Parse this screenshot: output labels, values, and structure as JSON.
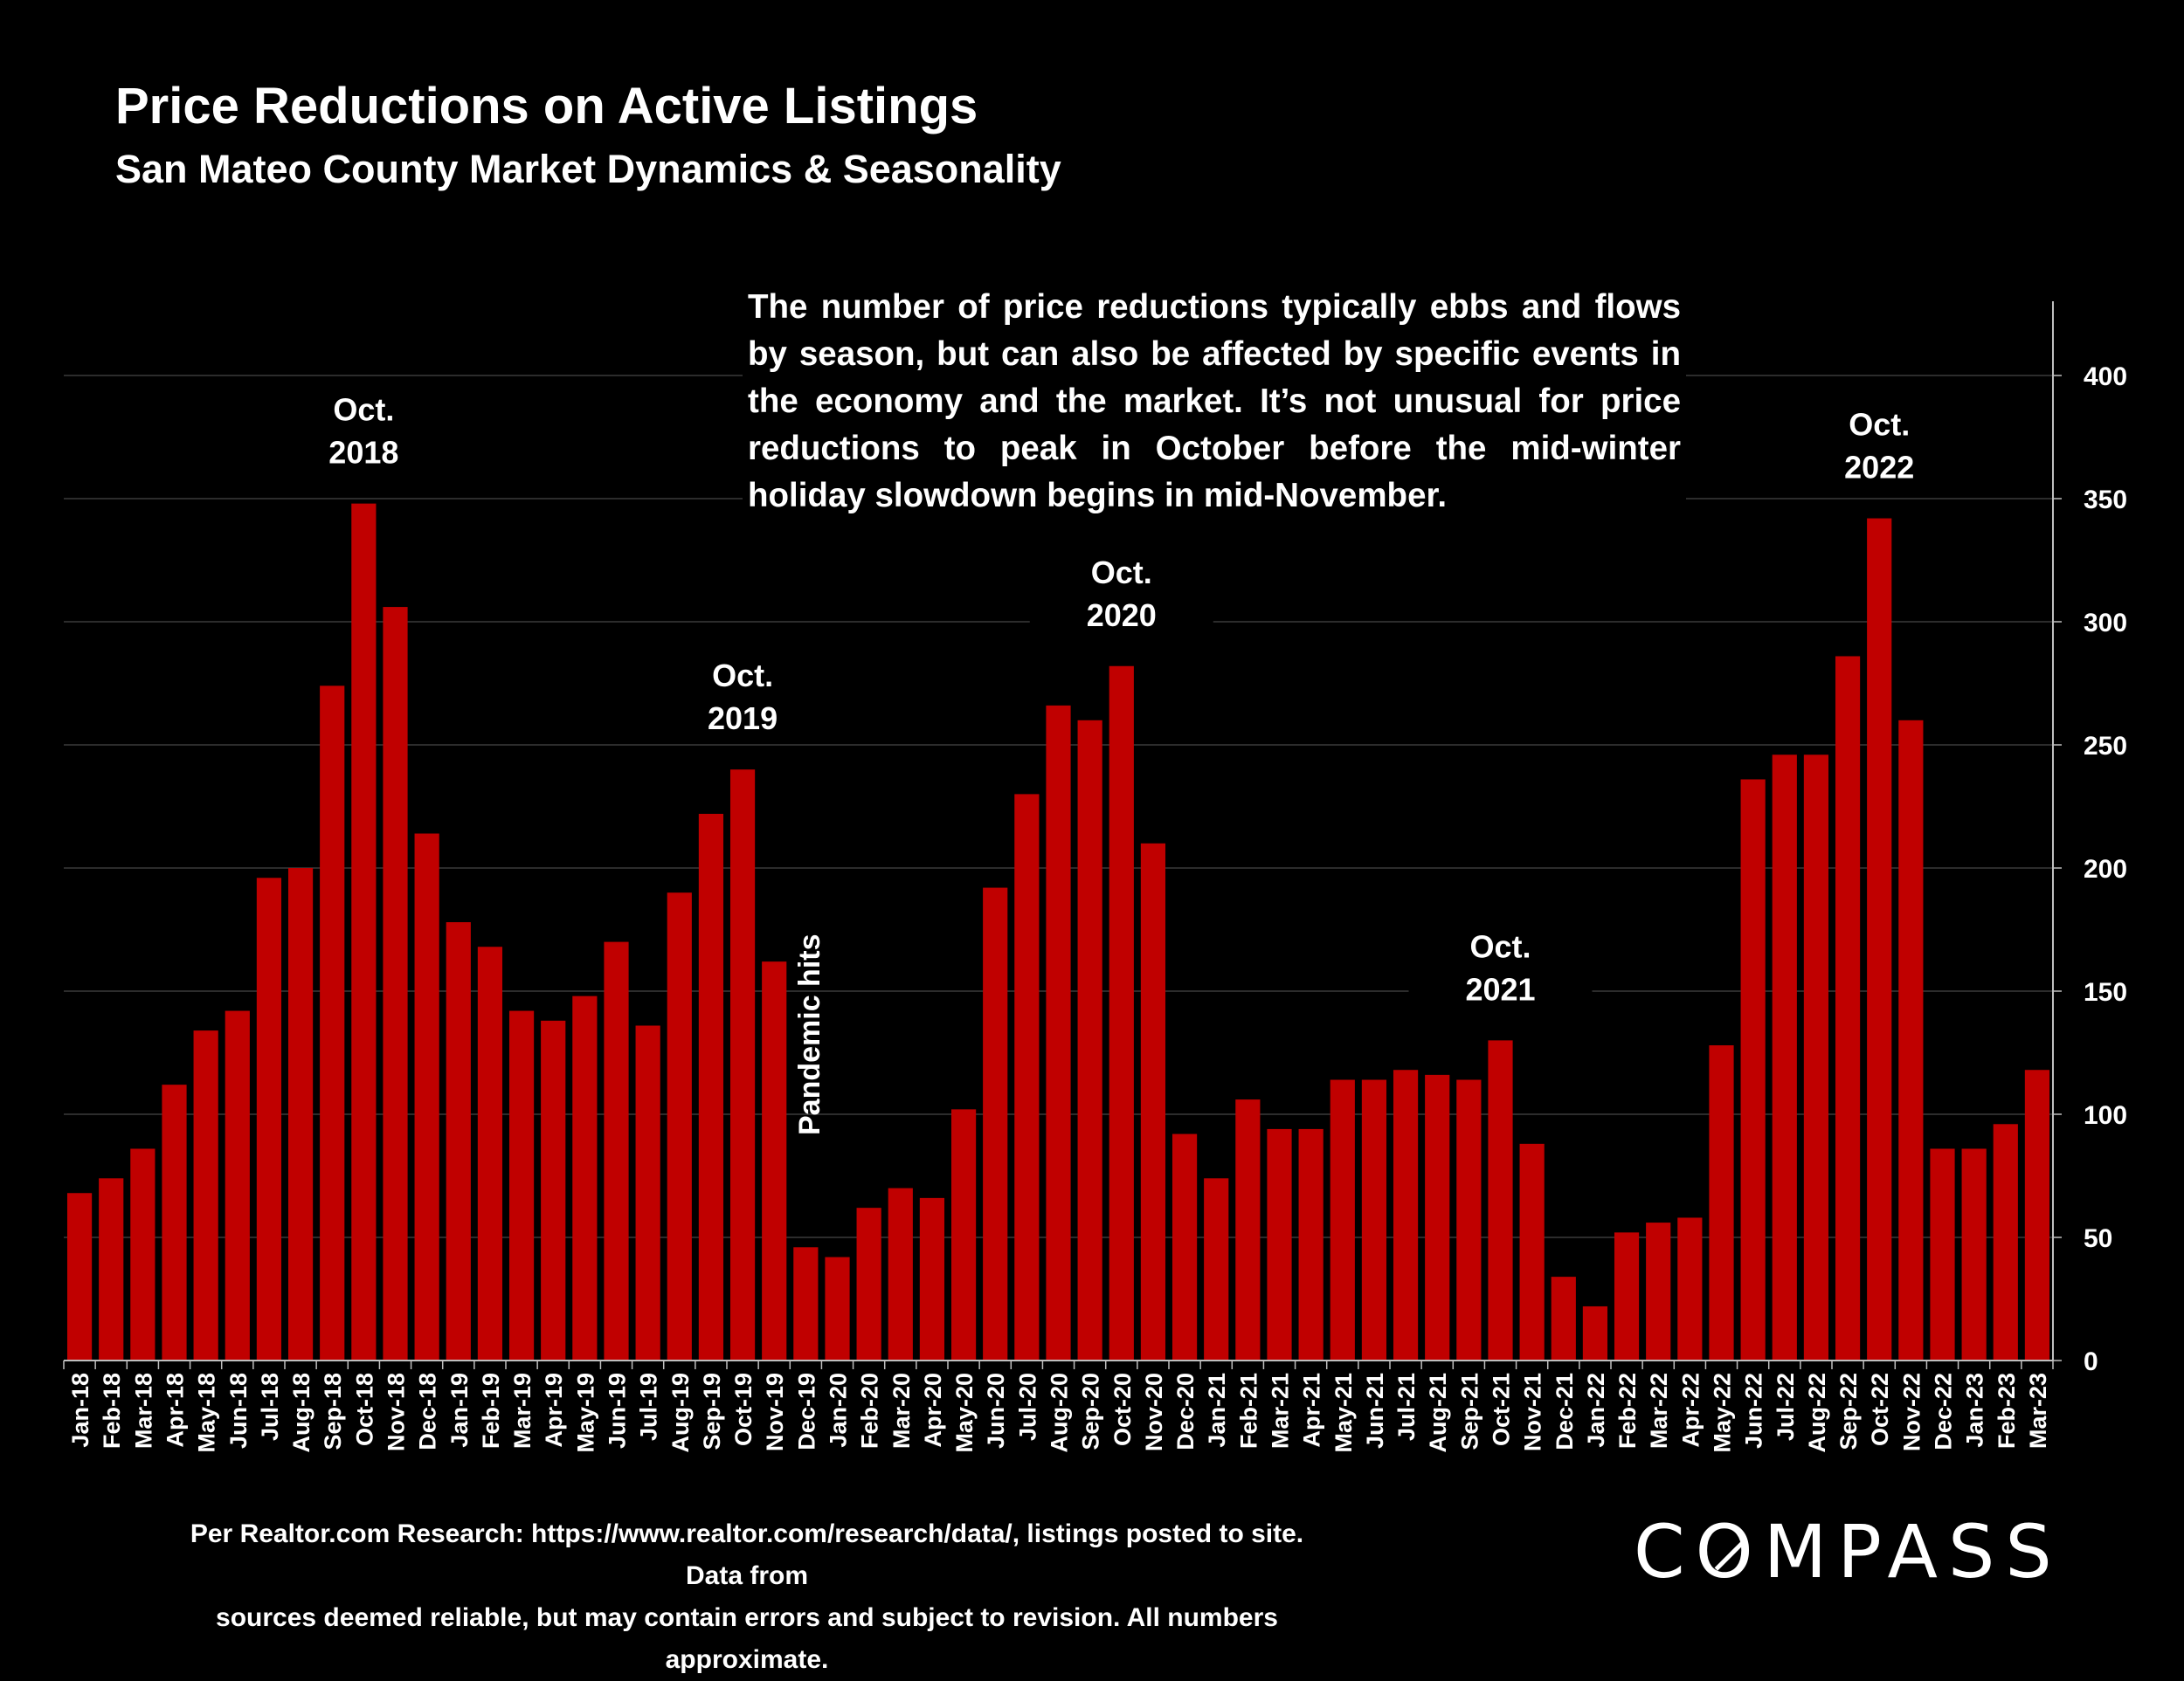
{
  "chart_data": {
    "type": "bar",
    "title": "Price Reductions on Active Listings",
    "subtitle": "San Mateo County Market Dynamics & Seasonality",
    "categories": [
      "Jan-18",
      "Feb-18",
      "Mar-18",
      "Apr-18",
      "May-18",
      "Jun-18",
      "Jul-18",
      "Aug-18",
      "Sep-18",
      "Oct-18",
      "Nov-18",
      "Dec-18",
      "Jan-19",
      "Feb-19",
      "Mar-19",
      "Apr-19",
      "May-19",
      "Jun-19",
      "Jul-19",
      "Aug-19",
      "Sep-19",
      "Oct-19",
      "Nov-19",
      "Dec-19",
      "Jan-20",
      "Feb-20",
      "Mar-20",
      "Apr-20",
      "May-20",
      "Jun-20",
      "Jul-20",
      "Aug-20",
      "Sep-20",
      "Oct-20",
      "Nov-20",
      "Dec-20",
      "Jan-21",
      "Feb-21",
      "Mar-21",
      "Apr-21",
      "May-21",
      "Jun-21",
      "Jul-21",
      "Aug-21",
      "Sep-21",
      "Oct-21",
      "Nov-21",
      "Dec-21",
      "Jan-22",
      "Feb-22",
      "Mar-22",
      "Apr-22",
      "May-22",
      "Jun-22",
      "Jul-22",
      "Aug-22",
      "Sep-22",
      "Oct-22",
      "Nov-22",
      "Dec-22",
      "Jan-23",
      "Feb-23",
      "Mar-23"
    ],
    "values": [
      68,
      74,
      86,
      112,
      134,
      142,
      196,
      200,
      274,
      348,
      306,
      214,
      178,
      168,
      142,
      138,
      148,
      170,
      136,
      190,
      222,
      240,
      162,
      46,
      42,
      62,
      70,
      66,
      102,
      192,
      230,
      266,
      260,
      282,
      210,
      92,
      74,
      106,
      94,
      94,
      114,
      114,
      118,
      116,
      114,
      130,
      88,
      34,
      22,
      52,
      56,
      58,
      128,
      236,
      246,
      246,
      286,
      342,
      260,
      86,
      86,
      96,
      118
    ],
    "ylim": [
      0,
      400
    ],
    "yticks": [
      0,
      50,
      100,
      150,
      200,
      250,
      300,
      350,
      400
    ],
    "y_axis_side": "right",
    "grid": true,
    "bar_color": "#C00000",
    "annotations": [
      {
        "text": [
          "Oct.",
          "2018"
        ],
        "category": "Oct-18"
      },
      {
        "text": [
          "Oct.",
          "2019"
        ],
        "category": "Oct-19"
      },
      {
        "text": [
          "Oct.",
          "2020"
        ],
        "category": "Oct-20"
      },
      {
        "text": [
          "Oct.",
          "2021"
        ],
        "category": "Oct-21"
      },
      {
        "text": [
          "Oct.",
          "2022"
        ],
        "category": "Oct-22"
      },
      {
        "text": [
          "Pandemic hits"
        ],
        "category": "Mar-20",
        "orientation": "vertical"
      }
    ]
  },
  "note": "The number of price reductions typically ebbs and flows by season, but can also be affected by specific events in the economy and the market. It’s not unusual for price reductions to peak in October before the mid-winter holiday slowdown begins in mid-November.",
  "footer": {
    "line1": "Per Realtor.com Research:  https://www.realtor.com/research/data/, listings posted to site. Data from",
    "line2": "sources deemed reliable, but may contain errors and subject to revision. All numbers approximate."
  },
  "logo": {
    "pre": "C",
    "o": "O",
    "post": "MPASS"
  }
}
